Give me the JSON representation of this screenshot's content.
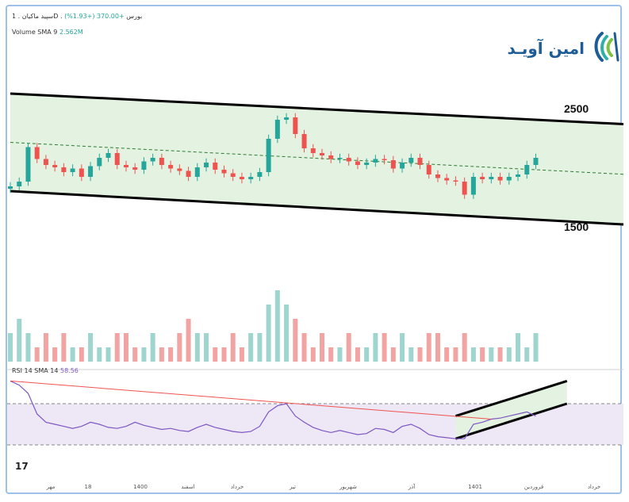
{
  "header": {
    "symbol_line": "سپید ماکیان . 1D . بورس",
    "change": "+370.00 (+1.93%)",
    "volume_label": "Volume SMA 9",
    "volume_value": "2.562M"
  },
  "rsi_legend": {
    "label": "RSI 14 SMA 14",
    "value": "58.56"
  },
  "brand": {
    "name": "امین آویـد",
    "accent": "#1d5c96",
    "accent2": "#2eb0a8"
  },
  "channel_levels": {
    "upper_label": "2500",
    "lower_label": "1500"
  },
  "x_axis_labels": [
    "مهر",
    "18",
    "1400",
    "اسفند",
    "خرداد",
    "تیر",
    "شهریور",
    "آذر",
    "1401",
    "فروردین",
    "خرداد"
  ],
  "watermark": "17",
  "colors": {
    "up": "#26a69a",
    "down": "#ef5350",
    "channel_fill": "#e3f2e1",
    "rsi_line": "#7e57c2",
    "rsi_band": "#ede7f6",
    "trend_red": "#ef5350"
  },
  "chart_data": [
    {
      "type": "candlestick",
      "title": "",
      "x": [
        0,
        10,
        20,
        30,
        40,
        50,
        60,
        70,
        80,
        90,
        100,
        110,
        120,
        130,
        140,
        150,
        160,
        170,
        180,
        190,
        200,
        210,
        220,
        230,
        240,
        250,
        260,
        270,
        280,
        290,
        300,
        310,
        320,
        330,
        340,
        350,
        360,
        370,
        380,
        390,
        400,
        410,
        420,
        430,
        440,
        450,
        460,
        470,
        480,
        490,
        500,
        510,
        520,
        530,
        540,
        550,
        560,
        570,
        580,
        590
      ],
      "close": [
        1720,
        1760,
        2050,
        1950,
        1900,
        1880,
        1840,
        1870,
        1800,
        1890,
        1960,
        2000,
        1900,
        1880,
        1860,
        1930,
        1960,
        1900,
        1870,
        1850,
        1800,
        1880,
        1920,
        1860,
        1830,
        1800,
        1780,
        1800,
        1840,
        2120,
        2280,
        2300,
        2160,
        2040,
        2000,
        1980,
        1950,
        1960,
        1930,
        1900,
        1920,
        1950,
        1940,
        1870,
        1920,
        1960,
        1900,
        1820,
        1790,
        1770,
        1760,
        1650,
        1800,
        1780,
        1800,
        1770,
        1800,
        1820,
        1900,
        1960
      ],
      "channel": {
        "upper": {
          "x": [
            0,
            590
          ],
          "y": [
            2500,
            2280
          ]
        },
        "lower": {
          "x": [
            0,
            590
          ],
          "y": [
            1680,
            1440
          ]
        },
        "mid": {
          "x": [
            0,
            590
          ],
          "y": [
            2090,
            1860
          ]
        }
      }
    },
    {
      "type": "bar",
      "title": "Volume",
      "series_name": "Volume",
      "values": [
        2,
        3,
        2,
        1,
        2,
        1,
        2,
        1,
        1,
        2,
        1,
        1,
        2,
        2,
        1,
        1,
        2,
        1,
        1,
        2,
        3,
        2,
        2,
        1,
        1,
        2,
        1,
        2,
        2,
        4,
        5,
        4,
        3,
        2,
        1,
        2,
        1,
        1,
        2,
        1,
        1,
        2,
        2,
        1,
        2,
        1,
        1,
        2,
        2,
        1,
        1,
        2,
        1,
        1,
        1,
        1,
        1,
        2,
        1,
        2
      ]
    },
    {
      "type": "line",
      "title": "RSI 14",
      "ylim": [
        0,
        100
      ],
      "bands": [
        30,
        70
      ],
      "values": [
        92,
        88,
        80,
        60,
        52,
        50,
        48,
        46,
        48,
        52,
        50,
        47,
        46,
        48,
        52,
        49,
        47,
        45,
        46,
        44,
        43,
        47,
        50,
        47,
        45,
        43,
        42,
        43,
        48,
        62,
        68,
        70,
        58,
        52,
        47,
        44,
        42,
        44,
        42,
        40,
        41,
        46,
        45,
        42,
        48,
        50,
        46,
        40,
        38,
        37,
        36,
        36,
        50,
        52,
        55,
        56,
        58,
        60,
        62,
        58
      ],
      "trendline": {
        "x": [
          0,
          500
        ],
        "y": [
          92,
          58
        ]
      },
      "rsi_channel": {
        "upper": {
          "x": [
            500,
            625
          ],
          "y": [
            58,
            92
          ]
        },
        "lower": {
          "x": [
            500,
            625
          ],
          "y": [
            36,
            70
          ]
        }
      }
    }
  ]
}
